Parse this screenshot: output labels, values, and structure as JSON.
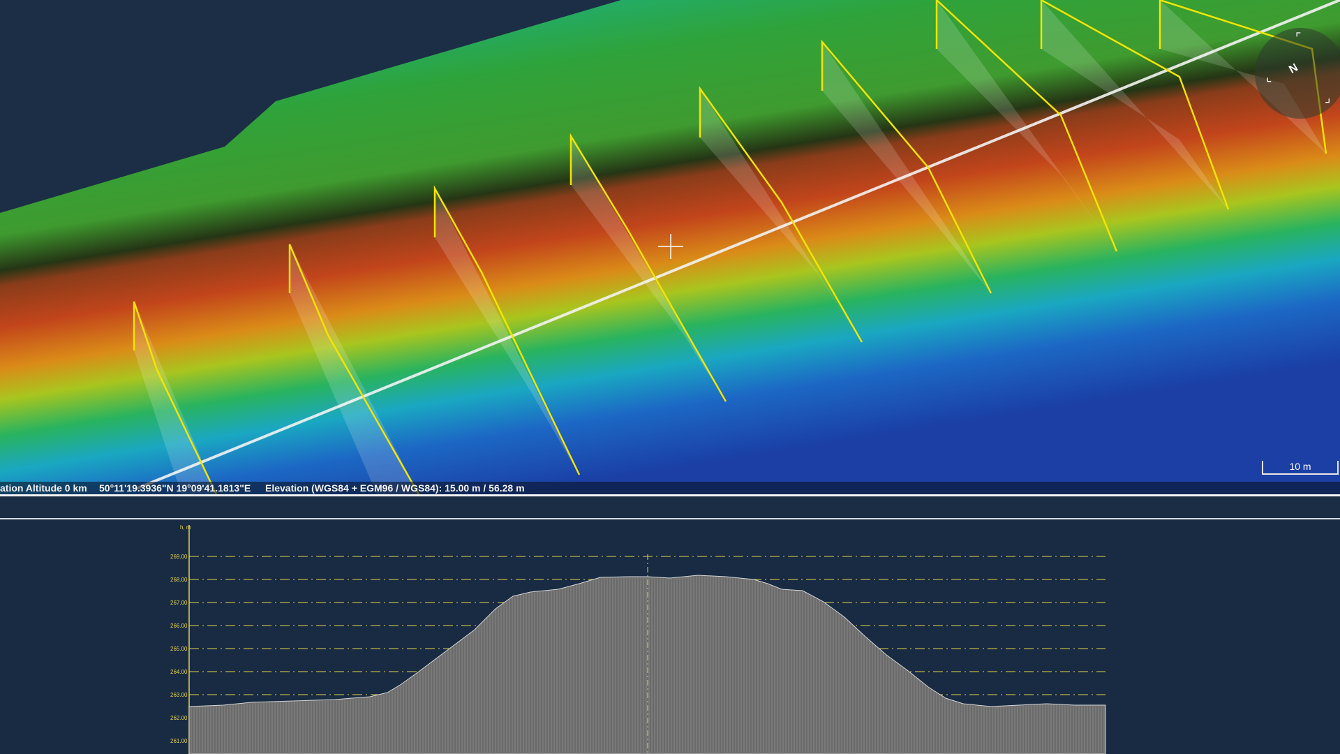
{
  "viewport": {
    "status": {
      "altitude": "ation Altitude 0 km",
      "coordinates": "50°11'19.3936\"N 19°09'41.1813\"E",
      "elevation": "Elevation (WGS84 + EGM96 / WGS84): 15.00 m / 56.28 m"
    },
    "scale_label": "10 m",
    "compass_label": "N"
  },
  "profile": {
    "y_axis_unit": "h, m",
    "y_ticks": [
      "269.00",
      "268.00",
      "267.00",
      "266.00",
      "265.00",
      "264.00",
      "263.00",
      "262.00",
      "261.00"
    ],
    "line_color": "#e6d44a",
    "fill_color": "#6b6b6b"
  },
  "colors": {
    "background": "#182b43",
    "section_line": "#f4e400",
    "terrain_high": "#c8401d",
    "terrain_mid": "#2ea52e",
    "terrain_low": "#1c4fb0"
  }
}
